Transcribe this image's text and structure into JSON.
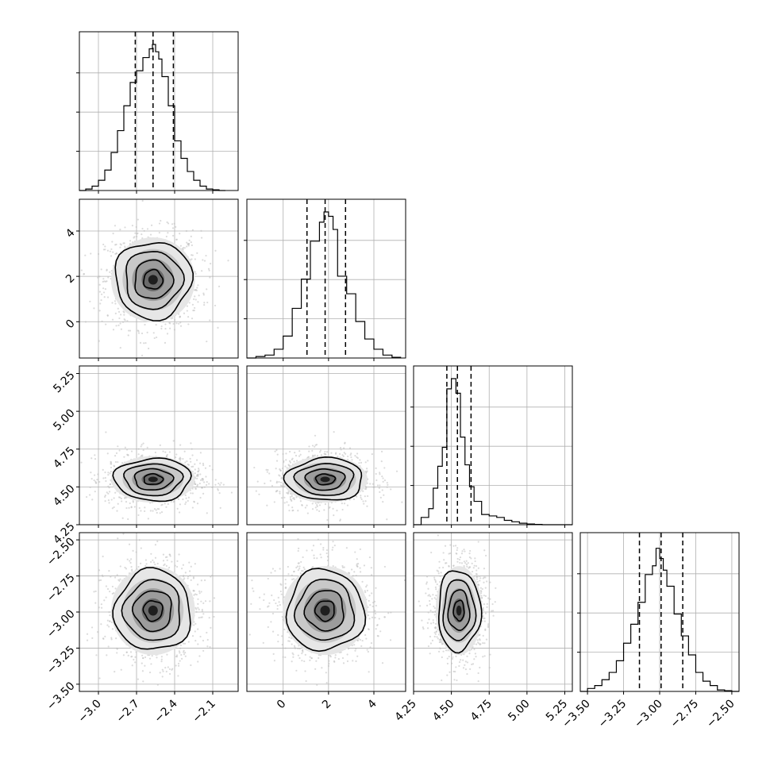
{
  "chart_data": {
    "type": "corner",
    "grid": true,
    "params": [
      {
        "range": [
          -3.15,
          -1.9
        ],
        "ticks": [
          -3.0,
          -2.7,
          -2.4,
          -2.1
        ],
        "tick_labels": [
          "−3.0",
          "−2.7",
          "−2.4",
          "−2.1"
        ],
        "quantiles": [
          -2.71,
          -2.57,
          -2.41
        ],
        "mean": -2.57,
        "sigma": 0.15
      },
      {
        "range": [
          -1.6,
          5.4
        ],
        "ticks": [
          0,
          2,
          4
        ],
        "tick_labels": [
          "0",
          "2",
          "4"
        ],
        "quantiles": [
          1.05,
          1.85,
          2.75
        ],
        "mean": 1.85,
        "sigma": 0.85
      },
      {
        "range": [
          4.25,
          5.3
        ],
        "ticks": [
          4.25,
          4.5,
          4.75,
          5.0,
          5.25
        ],
        "tick_labels": [
          "4.25",
          "4.50",
          "4.75",
          "5.00",
          "5.25"
        ],
        "quantiles": [
          4.47,
          4.54,
          4.63
        ],
        "mean": 4.55,
        "sigma": 0.07
      },
      {
        "range": [
          -3.55,
          -2.45
        ],
        "ticks": [
          -3.5,
          -3.25,
          -3.0,
          -2.75,
          -2.5
        ],
        "tick_labels": [
          "−3.50",
          "−3.25",
          "−3.00",
          "−2.75",
          "−2.50"
        ],
        "quantiles": [
          -3.14,
          -2.99,
          -2.84
        ],
        "mean": -2.99,
        "sigma": 0.14
      }
    ],
    "histograms": [
      {
        "param": 0,
        "bins": [
          -3.15,
          -3.1,
          -3.05,
          -3.0,
          -2.95,
          -2.9,
          -2.85,
          -2.8,
          -2.75,
          -2.7,
          -2.65,
          -2.6,
          -2.575,
          -2.55,
          -2.525,
          -2.5,
          -2.45,
          -2.4,
          -2.35,
          -2.3,
          -2.25,
          -2.2,
          -2.15,
          -2.1,
          -2.05,
          -2.0
        ],
        "counts": [
          0,
          0.01,
          0.03,
          0.07,
          0.14,
          0.26,
          0.41,
          0.58,
          0.74,
          0.82,
          0.91,
          0.97,
          1.0,
          0.95,
          0.9,
          0.78,
          0.58,
          0.34,
          0.22,
          0.13,
          0.07,
          0.03,
          0.01,
          0.005,
          0
        ]
      },
      {
        "param": 1,
        "bins": [
          -1.6,
          -1.2,
          -0.8,
          -0.4,
          0.0,
          0.4,
          0.8,
          1.2,
          1.6,
          1.8,
          2.0,
          2.2,
          2.4,
          2.8,
          3.2,
          3.6,
          4.0,
          4.4,
          4.8,
          5.2
        ],
        "counts": [
          0,
          0.01,
          0.02,
          0.06,
          0.15,
          0.34,
          0.54,
          0.8,
          0.93,
          1.0,
          0.97,
          0.88,
          0.56,
          0.44,
          0.25,
          0.13,
          0.06,
          0.02,
          0.005
        ]
      },
      {
        "param": 2,
        "bins": [
          4.25,
          4.3,
          4.35,
          4.38,
          4.41,
          4.44,
          4.47,
          4.5,
          4.53,
          4.56,
          4.59,
          4.62,
          4.65,
          4.7,
          4.75,
          4.8,
          4.85,
          4.9,
          4.95,
          5.0,
          5.05,
          5.1,
          5.2,
          5.3
        ],
        "counts": [
          0,
          0.05,
          0.11,
          0.25,
          0.4,
          0.53,
          0.93,
          1.0,
          0.9,
          0.6,
          0.41,
          0.26,
          0.16,
          0.07,
          0.06,
          0.05,
          0.03,
          0.02,
          0.01,
          0.005,
          0.002,
          0,
          0
        ]
      },
      {
        "param": 3,
        "bins": [
          -3.55,
          -3.5,
          -3.45,
          -3.4,
          -3.35,
          -3.3,
          -3.25,
          -3.2,
          -3.15,
          -3.1,
          -3.05,
          -3.025,
          -3.0,
          -2.975,
          -2.95,
          -2.9,
          -2.85,
          -2.8,
          -2.75,
          -2.7,
          -2.65,
          -2.6,
          -2.55,
          -2.5,
          -2.45
        ],
        "counts": [
          0,
          0.02,
          0.04,
          0.08,
          0.13,
          0.21,
          0.33,
          0.46,
          0.61,
          0.8,
          0.86,
          0.98,
          0.91,
          0.83,
          0.72,
          0.53,
          0.38,
          0.25,
          0.13,
          0.07,
          0.04,
          0.01,
          0.005,
          0
        ]
      }
    ],
    "scatter": [
      {
        "x": 0,
        "y": 1,
        "rho": 0.0
      },
      {
        "x": 0,
        "y": 2,
        "rho": 0.0
      },
      {
        "x": 1,
        "y": 2,
        "rho": 0.0
      },
      {
        "x": 0,
        "y": 3,
        "rho": 0.0
      },
      {
        "x": 1,
        "y": 3,
        "rho": 0.0
      },
      {
        "x": 2,
        "y": 3,
        "rho": 0.0
      }
    ]
  }
}
